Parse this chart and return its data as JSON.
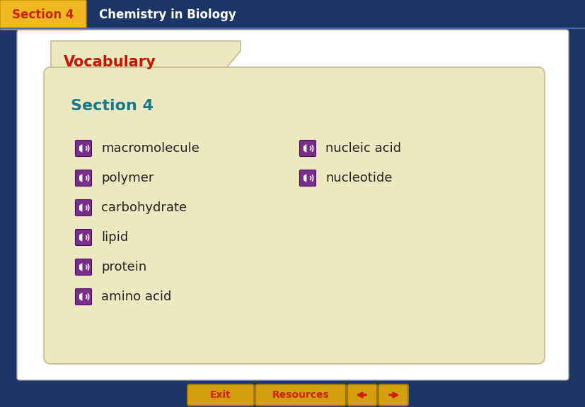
{
  "bg_color": "#1c3567",
  "header_bg_color": "#1c3567",
  "header_yellow_color": "#f0b820",
  "header_section_text": "Section 4",
  "header_section_color": "#cc2200",
  "header_title_text": "Chemistry in Biology",
  "header_title_color": "#ffffff",
  "slide_bg": "#ffffff",
  "folder_color": "#ece8c0",
  "vocab_label": "Vocabulary",
  "vocab_color": "#cc1100",
  "section_label": "Section 4",
  "section_color": "#1a7a8a",
  "left_terms": [
    "macromolecule",
    "polymer",
    "carbohydrate",
    "lipid",
    "protein",
    "amino acid"
  ],
  "right_terms": [
    "nucleic acid",
    "nucleotide"
  ],
  "term_color": "#222222",
  "icon_bg_color": "#7b2d8b",
  "bottom_bar_color": "#d4a010",
  "exit_text": "Exit",
  "resources_text": "Resources",
  "arrow_color": "#cc2200",
  "btn_text_color": "#cc2200"
}
